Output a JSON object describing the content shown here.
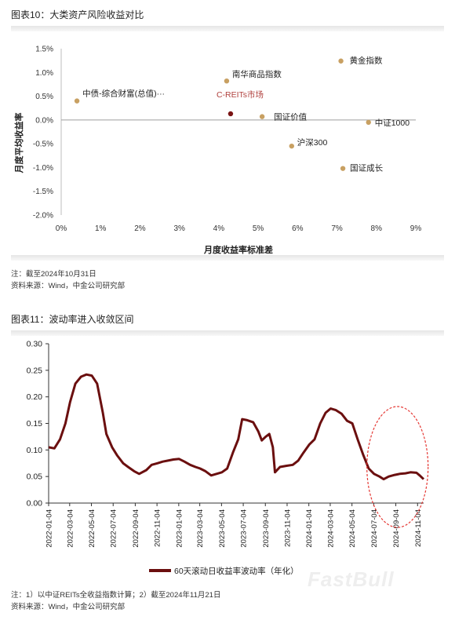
{
  "figure1": {
    "title": "图表10：大类资产风险收益对比",
    "note_lines": [
      "注：截至2024年10月31日",
      "资料来源：Wind，中金公司研究部"
    ]
  },
  "figure2": {
    "title": "图表11：波动率进入收敛区间",
    "note_lines": [
      "注：1）以中证REITs全收益指数计算；2）截至2024年11月21日",
      "资料来源：Wind，中金公司研究部"
    ]
  },
  "watermark": "FastBull",
  "colors": {
    "point": "#C8A062",
    "reit": "#7A1414",
    "reit_label": "#B0413E",
    "line": "#6B0F0F",
    "ellipse": "#E53935"
  },
  "chart_data": [
    {
      "type": "scatter",
      "xlabel": "月度收益率标准差",
      "ylabel": "月度平均收益率",
      "xlim": [
        0,
        9
      ],
      "ylim": [
        -2.0,
        1.5
      ],
      "x_ticks": [
        "0%",
        "1%",
        "2%",
        "3%",
        "4%",
        "5%",
        "6%",
        "7%",
        "8%",
        "9%"
      ],
      "y_ticks": [
        "1.5%",
        "1.0%",
        "0.5%",
        "0.0%",
        "-0.5%",
        "-1.0%",
        "-1.5%",
        "-2.0%"
      ],
      "points": [
        {
          "label": "中债-综合财富(总值)···",
          "x": 0.4,
          "y": 0.4,
          "kind": "normal"
        },
        {
          "label": "南华商品指数",
          "x": 4.2,
          "y": 0.82,
          "kind": "normal"
        },
        {
          "label": "C-REITs市场",
          "x": 4.3,
          "y": 0.13,
          "kind": "reit"
        },
        {
          "label": "黄金指数",
          "x": 7.1,
          "y": 1.24,
          "kind": "normal"
        },
        {
          "label": "国证价值",
          "x": 5.1,
          "y": 0.07,
          "kind": "normal"
        },
        {
          "label": "中证1000",
          "x": 7.8,
          "y": -0.05,
          "kind": "normal"
        },
        {
          "label": "沪深300",
          "x": 5.85,
          "y": -0.55,
          "kind": "normal"
        },
        {
          "label": "国证成长",
          "x": 7.15,
          "y": -1.02,
          "kind": "normal"
        }
      ]
    },
    {
      "type": "line",
      "ylim": [
        0,
        0.3
      ],
      "y_ticks": [
        "0.30",
        "0.25",
        "0.20",
        "0.15",
        "0.10",
        "0.05",
        "0.00"
      ],
      "x_ticks": [
        "2022-01-04",
        "2022-03-04",
        "2022-05-04",
        "2022-07-04",
        "2022-09-04",
        "2022-11-04",
        "2023-01-04",
        "2023-03-04",
        "2023-05-04",
        "2023-07-04",
        "2023-09-04",
        "2023-11-04",
        "2024-01-04",
        "2024-03-04",
        "2024-05-04",
        "2024-07-04",
        "2024-09-04",
        "2024-11-04"
      ],
      "series": [
        {
          "name": "60天滚动日收益率波动率（年化）",
          "points": [
            [
              "2022-01-04",
              0.105
            ],
            [
              "2022-01-20",
              0.103
            ],
            [
              "2022-02-05",
              0.12
            ],
            [
              "2022-02-20",
              0.15
            ],
            [
              "2022-03-05",
              0.19
            ],
            [
              "2022-03-20",
              0.225
            ],
            [
              "2022-04-05",
              0.238
            ],
            [
              "2022-04-20",
              0.242
            ],
            [
              "2022-05-05",
              0.24
            ],
            [
              "2022-05-20",
              0.225
            ],
            [
              "2022-06-05",
              0.17
            ],
            [
              "2022-06-15",
              0.13
            ],
            [
              "2022-07-01",
              0.105
            ],
            [
              "2022-07-15",
              0.09
            ],
            [
              "2022-08-01",
              0.075
            ],
            [
              "2022-08-15",
              0.068
            ],
            [
              "2022-09-01",
              0.06
            ],
            [
              "2022-09-15",
              0.055
            ],
            [
              "2022-10-05",
              0.062
            ],
            [
              "2022-10-20",
              0.072
            ],
            [
              "2022-11-05",
              0.075
            ],
            [
              "2022-11-20",
              0.078
            ],
            [
              "2022-12-05",
              0.08
            ],
            [
              "2022-12-20",
              0.082
            ],
            [
              "2023-01-05",
              0.083
            ],
            [
              "2023-01-20",
              0.078
            ],
            [
              "2023-02-05",
              0.072
            ],
            [
              "2023-02-20",
              0.068
            ],
            [
              "2023-03-05",
              0.065
            ],
            [
              "2023-03-20",
              0.06
            ],
            [
              "2023-04-05",
              0.052
            ],
            [
              "2023-04-20",
              0.055
            ],
            [
              "2023-05-05",
              0.058
            ],
            [
              "2023-05-20",
              0.065
            ],
            [
              "2023-06-05",
              0.095
            ],
            [
              "2023-06-20",
              0.12
            ],
            [
              "2023-07-01",
              0.158
            ],
            [
              "2023-07-15",
              0.156
            ],
            [
              "2023-08-01",
              0.152
            ],
            [
              "2023-08-15",
              0.135
            ],
            [
              "2023-08-25",
              0.118
            ],
            [
              "2023-09-05",
              0.125
            ],
            [
              "2023-09-15",
              0.13
            ],
            [
              "2023-09-25",
              0.105
            ],
            [
              "2023-10-01",
              0.058
            ],
            [
              "2023-10-15",
              0.068
            ],
            [
              "2023-11-01",
              0.07
            ],
            [
              "2023-11-20",
              0.072
            ],
            [
              "2023-12-05",
              0.08
            ],
            [
              "2023-12-20",
              0.095
            ],
            [
              "2024-01-05",
              0.11
            ],
            [
              "2024-01-20",
              0.12
            ],
            [
              "2024-02-05",
              0.15
            ],
            [
              "2024-02-20",
              0.17
            ],
            [
              "2024-03-05",
              0.178
            ],
            [
              "2024-03-20",
              0.175
            ],
            [
              "2024-04-05",
              0.168
            ],
            [
              "2024-04-20",
              0.155
            ],
            [
              "2024-05-05",
              0.15
            ],
            [
              "2024-05-20",
              0.12
            ],
            [
              "2024-06-05",
              0.09
            ],
            [
              "2024-06-20",
              0.065
            ],
            [
              "2024-07-05",
              0.055
            ],
            [
              "2024-07-20",
              0.05
            ],
            [
              "2024-08-01",
              0.045
            ],
            [
              "2024-08-15",
              0.05
            ],
            [
              "2024-09-01",
              0.053
            ],
            [
              "2024-09-15",
              0.055
            ],
            [
              "2024-10-01",
              0.056
            ],
            [
              "2024-10-15",
              0.058
            ],
            [
              "2024-11-01",
              0.057
            ],
            [
              "2024-11-10",
              0.052
            ],
            [
              "2024-11-21",
              0.045
            ]
          ]
        }
      ]
    }
  ]
}
